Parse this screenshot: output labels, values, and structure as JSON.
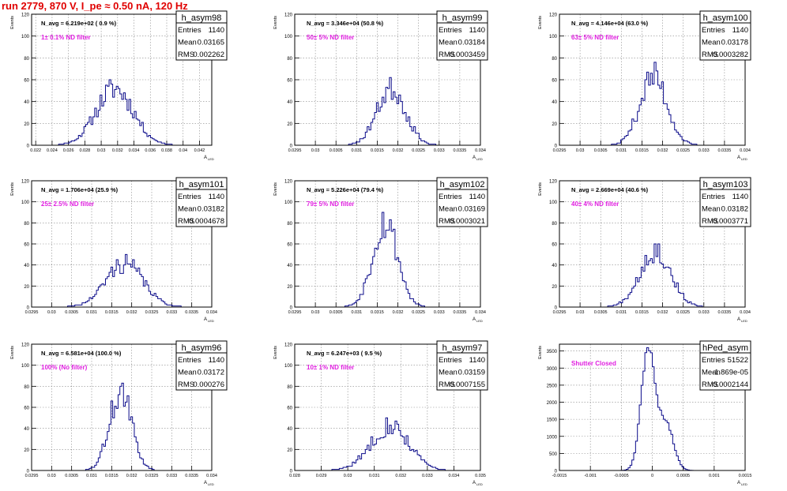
{
  "run_title": "run 2779,   870 V, I_pe ≈ 0.50 nA, 120 Hz",
  "y_axis_label": "Events",
  "x_axis_label": "A",
  "x_axis_label_sub": "LED",
  "stats_labels": [
    "Entries",
    "Mean",
    "RMS"
  ],
  "colors": {
    "histogram": "#0b0b8a",
    "title_red": "#e00000",
    "annotation_magenta": "#e020e0",
    "grid": "#888888"
  },
  "chart_data": [
    {
      "type": "histogram",
      "title": "h_asym98",
      "navg": "N_avg = 6.219e+02 ( 0.9 %)",
      "filter": "1± 0.1% ND filter",
      "stats": {
        "entries": "1140",
        "mean": "0.03165",
        "rms": "0.002262"
      },
      "xlim": [
        0.0215,
        0.0435
      ],
      "ylim": [
        0,
        120
      ],
      "x_ticks": [
        "0.022",
        "0.024",
        "0.026",
        "0.028",
        "0.03",
        "0.032",
        "0.034",
        "0.036",
        "0.038",
        "0.04",
        "0.042"
      ],
      "y_ticks": [
        "0",
        "20",
        "40",
        "60",
        "80",
        "100",
        "120"
      ],
      "mean": 0.03165,
      "rms": 0.002262,
      "entries": 1140,
      "peak": 60,
      "bins": 100,
      "seed": 11
    },
    {
      "type": "histogram",
      "title": "h_asym99",
      "navg": "N_avg = 3.346e+04 (50.8 %)",
      "filter": "50± 5% ND filter",
      "stats": {
        "entries": "1140",
        "mean": "0.03184",
        "rms": "0.0003459"
      },
      "xlim": [
        0.0295,
        0.034
      ],
      "ylim": [
        0,
        120
      ],
      "x_ticks": [
        "0.0295",
        "0.03",
        "0.0305",
        "0.031",
        "0.0315",
        "0.032",
        "0.0325",
        "0.033",
        "0.0335",
        "0.034"
      ],
      "y_ticks": [
        "0",
        "20",
        "40",
        "60",
        "80",
        "100",
        "120"
      ],
      "mean": 0.03184,
      "rms": 0.0003459,
      "entries": 1140,
      "peak": 62,
      "bins": 100,
      "seed": 23
    },
    {
      "type": "histogram",
      "title": "h_asym100",
      "navg": "N_avg = 4.146e+04 (63.0 %)",
      "filter": "63± 5% ND filter",
      "stats": {
        "entries": "1140",
        "mean": "0.03178",
        "rms": "0.0003282"
      },
      "xlim": [
        0.0295,
        0.034
      ],
      "ylim": [
        0,
        120
      ],
      "x_ticks": [
        "0.0295",
        "0.03",
        "0.0305",
        "0.031",
        "0.0315",
        "0.032",
        "0.0325",
        "0.033",
        "0.0335",
        "0.034"
      ],
      "y_ticks": [
        "0",
        "20",
        "40",
        "60",
        "80",
        "100",
        "120"
      ],
      "mean": 0.03178,
      "rms": 0.0003282,
      "entries": 1140,
      "peak": 76,
      "bins": 100,
      "seed": 37
    },
    {
      "type": "histogram",
      "title": "h_asym101",
      "navg": "N_avg = 1.706e+04 (25.9 %)",
      "filter": "25± 2.5% ND filter",
      "stats": {
        "entries": "1140",
        "mean": "0.03182",
        "rms": "0.0004678"
      },
      "xlim": [
        0.0295,
        0.034
      ],
      "ylim": [
        0,
        120
      ],
      "x_ticks": [
        "0.0295",
        "0.03",
        "0.0305",
        "0.031",
        "0.0315",
        "0.032",
        "0.0325",
        "0.033",
        "0.0335",
        "0.034"
      ],
      "y_ticks": [
        "0",
        "20",
        "40",
        "60",
        "80",
        "100",
        "120"
      ],
      "mean": 0.03182,
      "rms": 0.0004678,
      "entries": 1140,
      "peak": 50,
      "bins": 100,
      "seed": 41
    },
    {
      "type": "histogram",
      "title": "h_asym102",
      "navg": "N_avg = 5.226e+04 (79.4 %)",
      "filter": "79± 5% ND filter",
      "stats": {
        "entries": "1140",
        "mean": "0.03169",
        "rms": "0.0003021"
      },
      "xlim": [
        0.0295,
        0.034
      ],
      "ylim": [
        0,
        120
      ],
      "x_ticks": [
        "0.0295",
        "0.03",
        "0.0305",
        "0.031",
        "0.0315",
        "0.032",
        "0.0325",
        "0.033",
        "0.0335",
        "0.034"
      ],
      "y_ticks": [
        "0",
        "20",
        "40",
        "60",
        "80",
        "100",
        "120"
      ],
      "mean": 0.03169,
      "rms": 0.0003021,
      "entries": 1140,
      "peak": 90,
      "bins": 100,
      "seed": 53
    },
    {
      "type": "histogram",
      "title": "h_asym103",
      "navg": "N_avg = 2.669e+04 (40.6 %)",
      "filter": "40± 4% ND filter",
      "stats": {
        "entries": "1140",
        "mean": "0.03182",
        "rms": "0.0003771"
      },
      "xlim": [
        0.0295,
        0.034
      ],
      "ylim": [
        0,
        120
      ],
      "x_ticks": [
        "0.0295",
        "0.03",
        "0.0305",
        "0.031",
        "0.0315",
        "0.032",
        "0.0325",
        "0.033",
        "0.0335",
        "0.034"
      ],
      "y_ticks": [
        "0",
        "20",
        "40",
        "60",
        "80",
        "100",
        "120"
      ],
      "mean": 0.03182,
      "rms": 0.0003771,
      "entries": 1140,
      "peak": 60,
      "bins": 100,
      "seed": 67
    },
    {
      "type": "histogram",
      "title": "h_asym96",
      "navg": "N_avg = 6.581e+04 (100.0 %)",
      "filter": "100% (No filter)",
      "stats": {
        "entries": "1140",
        "mean": "0.03172",
        "rms": "0.000276"
      },
      "xlim": [
        0.0295,
        0.034
      ],
      "ylim": [
        0,
        120
      ],
      "x_ticks": [
        "0.0295",
        "0.03",
        "0.0305",
        "0.031",
        "0.0315",
        "0.032",
        "0.0325",
        "0.033",
        "0.0335",
        "0.034"
      ],
      "y_ticks": [
        "0",
        "20",
        "40",
        "60",
        "80",
        "100",
        "120"
      ],
      "mean": 0.03172,
      "rms": 0.000276,
      "entries": 1140,
      "peak": 83,
      "bins": 100,
      "seed": 71
    },
    {
      "type": "histogram",
      "title": "h_asym97",
      "navg": "N_avg = 6.247e+03 ( 9.5 %)",
      "filter": "10± 1% ND filter",
      "stats": {
        "entries": "1140",
        "mean": "0.03159",
        "rms": "0.0007155"
      },
      "xlim": [
        0.028,
        0.035
      ],
      "ylim": [
        0,
        120
      ],
      "x_ticks": [
        "0.028",
        "0.029",
        "0.03",
        "0.031",
        "0.032",
        "0.033",
        "0.034",
        "0.035"
      ],
      "y_ticks": [
        "0",
        "20",
        "40",
        "60",
        "80",
        "100",
        "120"
      ],
      "mean": 0.03159,
      "rms": 0.0007155,
      "entries": 1140,
      "peak": 50,
      "bins": 100,
      "seed": 83
    },
    {
      "type": "histogram",
      "title": "hPed_asym",
      "navg": "",
      "filter": "Shutter Closed",
      "stats": {
        "entries": "51522",
        "mean": "-1.869e-05",
        "rms": "0.0002144"
      },
      "xlim": [
        -0.0015,
        0.0015
      ],
      "ylim": [
        0,
        3700
      ],
      "x_ticks": [
        "-0.0015",
        "-0.001",
        "-0.0005",
        "0",
        "0.0005",
        "0.001",
        "0.0015"
      ],
      "y_ticks": [
        "0",
        "500",
        "1000",
        "1500",
        "2000",
        "2500",
        "3000",
        "3500"
      ],
      "mean": -1.87e-05,
      "rms": 0.0002144,
      "entries": 51522,
      "peak": 3600,
      "bins": 100,
      "seed": 97,
      "bimodal": {
        "main_mean": -7e-05,
        "main_sigma": 0.00011,
        "second_mean": 0.00022,
        "second_sigma": 0.00012,
        "second_ratio": 0.39
      }
    }
  ]
}
